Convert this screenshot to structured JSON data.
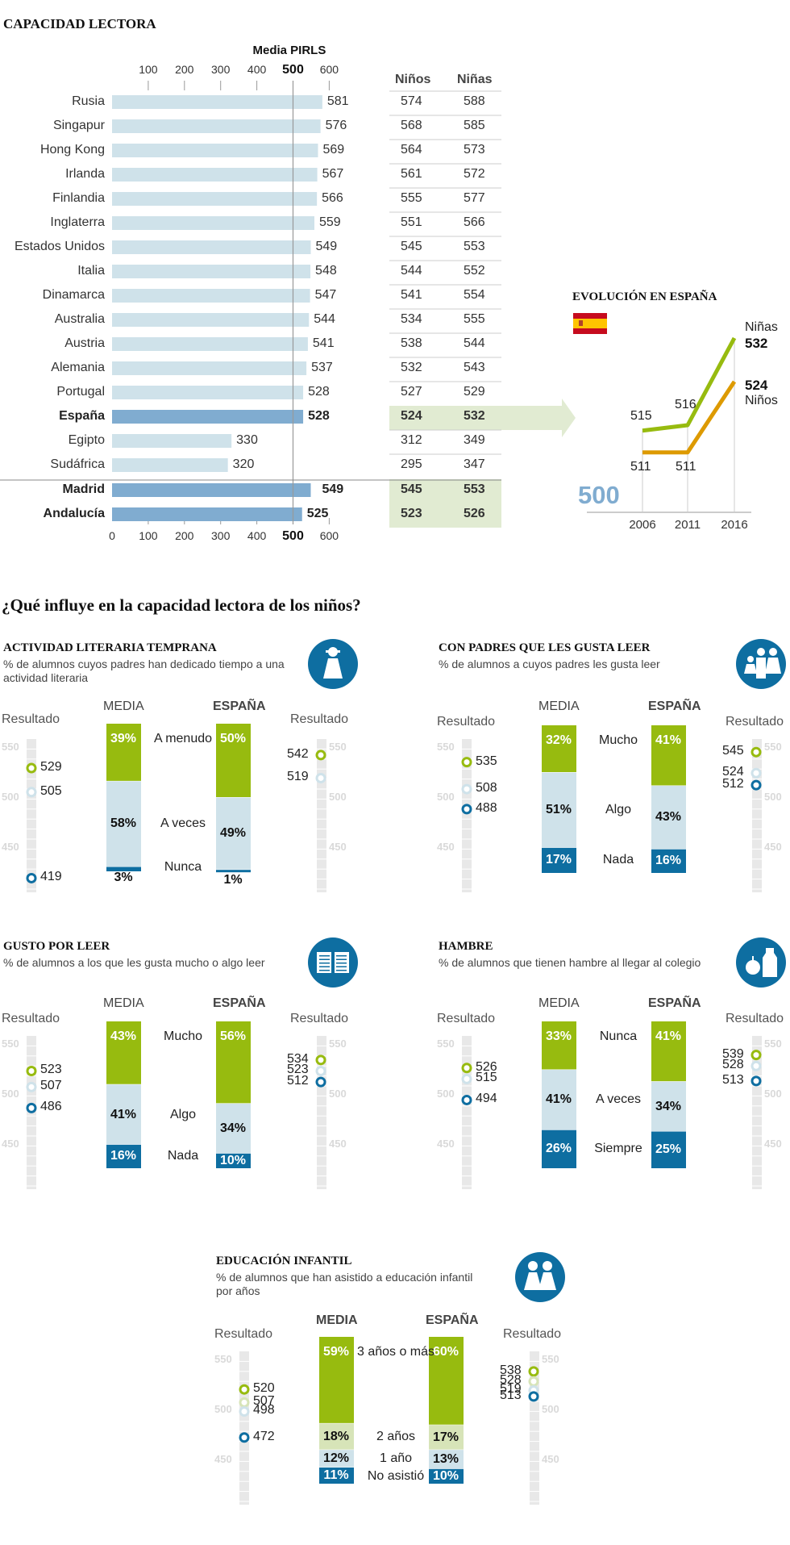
{
  "title": "CAPACIDAD LECTORA",
  "colors": {
    "bar_light": "#cfe2ea",
    "bar_dark": "#80acd0",
    "highlight_bg": "#e1ebd2",
    "green": "#97bb0f",
    "light_blue": "#cfe2ea",
    "light_green": "#d7e4b8",
    "dark_blue": "#0e6ea1",
    "orange": "#dd9a00",
    "scale_strip": "#e8e8e8"
  },
  "chart_data": [
    {
      "type": "bar",
      "title": "Media PIRLS",
      "orientation": "horizontal",
      "xlim": [
        0,
        600
      ],
      "ticks_top": [
        "100",
        "200",
        "300",
        "400",
        "500",
        "600"
      ],
      "ticks_bottom": [
        "0",
        "100",
        "200",
        "300",
        "400",
        "500",
        "600"
      ],
      "reference_line": 500,
      "table_headers": [
        "Niños",
        "Niñas"
      ],
      "rows": [
        {
          "country": "Rusia",
          "value": 581,
          "ninos": 574,
          "ninas": 588,
          "highlight": false
        },
        {
          "country": "Singapur",
          "value": 576,
          "ninos": 568,
          "ninas": 585,
          "highlight": false
        },
        {
          "country": "Hong Kong",
          "value": 569,
          "ninos": 564,
          "ninas": 573,
          "highlight": false
        },
        {
          "country": "Irlanda",
          "value": 567,
          "ninos": 561,
          "ninas": 572,
          "highlight": false
        },
        {
          "country": "Finlandia",
          "value": 566,
          "ninos": 555,
          "ninas": 577,
          "highlight": false
        },
        {
          "country": "Inglaterra",
          "value": 559,
          "ninos": 551,
          "ninas": 566,
          "highlight": false
        },
        {
          "country": "Estados Unidos",
          "value": 549,
          "ninos": 545,
          "ninas": 553,
          "highlight": false
        },
        {
          "country": "Italia",
          "value": 548,
          "ninos": 544,
          "ninas": 552,
          "highlight": false
        },
        {
          "country": "Dinamarca",
          "value": 547,
          "ninos": 541,
          "ninas": 554,
          "highlight": false
        },
        {
          "country": "Australia",
          "value": 544,
          "ninos": 534,
          "ninas": 555,
          "highlight": false
        },
        {
          "country": "Austria",
          "value": 541,
          "ninos": 538,
          "ninas": 544,
          "highlight": false
        },
        {
          "country": "Alemania",
          "value": 537,
          "ninos": 532,
          "ninas": 543,
          "highlight": false
        },
        {
          "country": "Portugal",
          "value": 528,
          "ninos": 527,
          "ninas": 529,
          "highlight": false
        },
        {
          "country": "España",
          "value": 528,
          "ninos": 524,
          "ninas": 532,
          "highlight": true
        },
        {
          "country": "Egipto",
          "value": 330,
          "ninos": 312,
          "ninas": 349,
          "highlight": false
        },
        {
          "country": "Sudáfrica",
          "value": 320,
          "ninos": 295,
          "ninas": 347,
          "highlight": false
        },
        {
          "country": "Madrid",
          "value": 549,
          "ninos": 545,
          "ninas": 553,
          "highlight": true
        },
        {
          "country": "Andalucía",
          "value": 525,
          "ninos": 523,
          "ninas": 526,
          "highlight": true
        }
      ]
    },
    {
      "type": "line",
      "title": "EVOLUCIÓN EN ESPAÑA",
      "x": [
        "2006",
        "2011",
        "2016"
      ],
      "baseline_label": "500",
      "ylim": [
        500,
        535
      ],
      "series": [
        {
          "name": "Niñas",
          "values": [
            515,
            516,
            532
          ],
          "color": "green"
        },
        {
          "name": "Niños",
          "values": [
            511,
            511,
            524
          ],
          "color": "orange"
        }
      ]
    },
    {
      "type": "bar",
      "stacked": true,
      "title": "ACTIVIDAD LITERARIA TEMPRANA",
      "subtitle": "% de alumnos cuyos padres han dedicado tiempo a una actividad literaria",
      "icon": "child-icon",
      "categories": [
        "A menudo",
        "A veces",
        "Nunca"
      ],
      "series": [
        {
          "name": "MEDIA",
          "values": [
            39,
            58,
            3
          ]
        },
        {
          "name": "ESPAÑA",
          "values": [
            50,
            49,
            1
          ]
        }
      ],
      "resultado_media": [
        529,
        505,
        419
      ],
      "resultado_espana": [
        542,
        519,
        null
      ],
      "scale": [
        450,
        500,
        550
      ]
    },
    {
      "type": "bar",
      "stacked": true,
      "title": "CON PADRES QUE LES GUSTA LEER",
      "subtitle": "% de alumnos a cuyos padres les gusta leer",
      "icon": "family-icon",
      "categories": [
        "Mucho",
        "Algo",
        "Nada"
      ],
      "series": [
        {
          "name": "MEDIA",
          "values": [
            32,
            51,
            17
          ]
        },
        {
          "name": "ESPAÑA",
          "values": [
            41,
            43,
            16
          ]
        }
      ],
      "resultado_media": [
        535,
        508,
        488
      ],
      "resultado_espana": [
        545,
        524,
        512
      ],
      "scale": [
        450,
        500,
        550
      ]
    },
    {
      "type": "bar",
      "stacked": true,
      "title": "GUSTO POR LEER",
      "subtitle": "% de alumnos a los que les gusta mucho o algo leer",
      "icon": "book-icon",
      "categories": [
        "Mucho",
        "Algo",
        "Nada"
      ],
      "series": [
        {
          "name": "MEDIA",
          "values": [
            43,
            41,
            16
          ]
        },
        {
          "name": "ESPAÑA",
          "values": [
            56,
            34,
            10
          ]
        }
      ],
      "resultado_media": [
        523,
        507,
        486
      ],
      "resultado_espana": [
        534,
        523,
        512
      ],
      "scale": [
        450,
        500,
        550
      ]
    },
    {
      "type": "bar",
      "stacked": true,
      "title": "HAMBRE",
      "subtitle": "% de alumnos que tienen hambre al llegar al colegio",
      "icon": "food-icon",
      "categories": [
        "Nunca",
        "A veces",
        "Siempre"
      ],
      "series": [
        {
          "name": "MEDIA",
          "values": [
            33,
            41,
            26
          ]
        },
        {
          "name": "ESPAÑA",
          "values": [
            41,
            34,
            25
          ]
        }
      ],
      "resultado_media": [
        526,
        515,
        494
      ],
      "resultado_espana": [
        539,
        528,
        513
      ],
      "scale": [
        450,
        500,
        550
      ]
    },
    {
      "type": "bar",
      "stacked": true,
      "title": "EDUCACIÓN INFANTIL",
      "subtitle": "% de alumnos que han asistido a educación infantil por años",
      "icon": "children-icon",
      "categories": [
        "3 años o más",
        "2 años",
        "1 año",
        "No asistió"
      ],
      "series": [
        {
          "name": "MEDIA",
          "values": [
            59,
            18,
            12,
            11
          ]
        },
        {
          "name": "ESPAÑA",
          "values": [
            60,
            17,
            13,
            10
          ]
        }
      ],
      "resultado_media": [
        520,
        507,
        498,
        472
      ],
      "resultado_espana": [
        538,
        528,
        519,
        513
      ],
      "scale": [
        450,
        500,
        550
      ]
    }
  ],
  "section2_title": "¿Qué influye en la capacidad lectora de los niños?",
  "labels": {
    "media": "MEDIA",
    "espana": "ESPAÑA",
    "resultado": "Resultado",
    "pirls": "Media PIRLS"
  }
}
